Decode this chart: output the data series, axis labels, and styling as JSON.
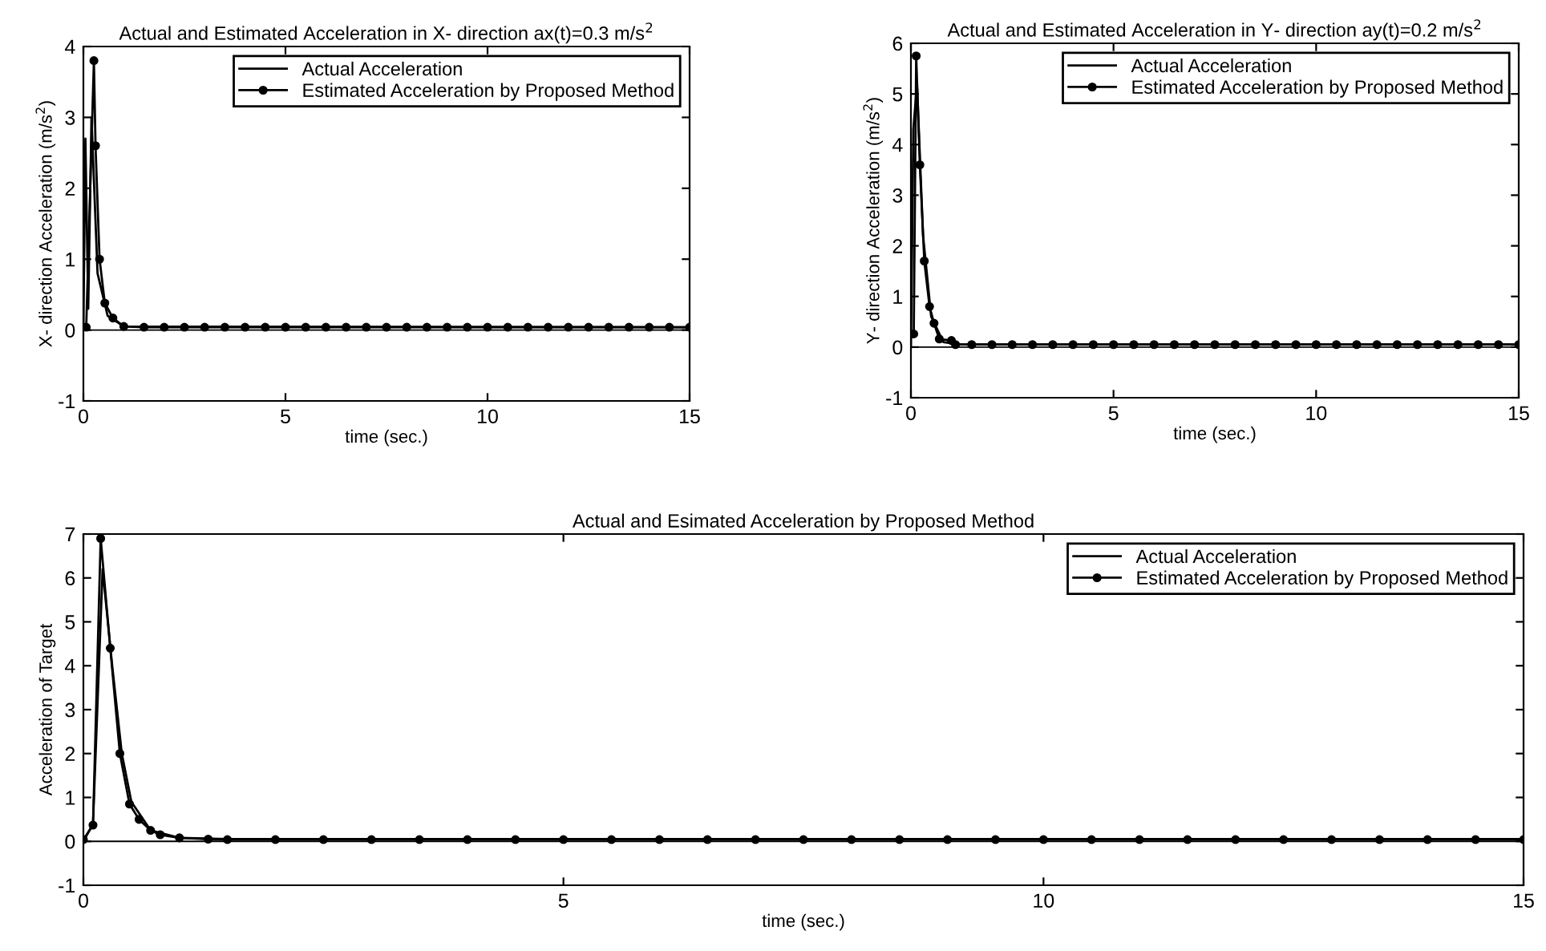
{
  "chart_data": [
    {
      "type": "line",
      "title": "Actual and Estimated Acceleration in X- direction ax(t)=0.3 m/s$^{2}$",
      "xlabel": "time (sec.)",
      "ylabel": "X- direction Acceleration (m/s$^{2}$)",
      "xlim": [
        0,
        15
      ],
      "ylim": [
        -1,
        4
      ],
      "xticks": [
        0,
        5,
        10,
        15
      ],
      "yticks": [
        -1,
        0,
        1,
        2,
        3,
        4
      ],
      "grid": false,
      "legend": "top right",
      "ref_lines": [
        {
          "axis": "y",
          "value": 0,
          "color": "#000000"
        }
      ],
      "series": [
        {
          "name": "Actual Acceleration",
          "color": "#000000",
          "marker": "none",
          "x": [
            0,
            0.05,
            0.12,
            0.2,
            0.35,
            0.6,
            1.0,
            15
          ],
          "values": [
            0,
            2.7,
            0.3,
            3.0,
            0.8,
            0.2,
            0.05,
            0.04
          ]
        },
        {
          "name": "Estimated Acceleration by Proposed Method",
          "color": "#000000",
          "marker": "circle",
          "x": [
            0.07,
            0.26,
            0.3,
            0.4,
            0.53,
            0.73,
            1.0,
            1.5,
            2,
            2.5,
            3,
            3.5,
            4,
            4.5,
            5,
            5.5,
            6,
            6.5,
            7,
            7.5,
            8,
            8.5,
            9,
            9.5,
            10,
            10.5,
            11,
            11.5,
            12,
            12.5,
            13,
            13.5,
            14,
            14.5,
            15
          ],
          "values": [
            0.04,
            3.8,
            2.6,
            1.0,
            0.38,
            0.17,
            0.05,
            0.04,
            0.04,
            0.04,
            0.04,
            0.04,
            0.04,
            0.04,
            0.04,
            0.04,
            0.04,
            0.04,
            0.04,
            0.04,
            0.04,
            0.04,
            0.04,
            0.04,
            0.04,
            0.04,
            0.04,
            0.04,
            0.04,
            0.04,
            0.04,
            0.04,
            0.04,
            0.04,
            0.04
          ]
        }
      ]
    },
    {
      "type": "line",
      "title": "Actual and Estimated Acceleration in Y- direction ay(t)=0.2 m/s$^{2}$",
      "xlabel": "time (sec.)",
      "ylabel": "Y- direction Acceleration (m/s$^{2}$)",
      "xlim": [
        0,
        15
      ],
      "ylim": [
        -1,
        6
      ],
      "xticks": [
        0,
        5,
        10,
        15
      ],
      "yticks": [
        -1,
        0,
        1,
        2,
        3,
        4,
        5,
        6
      ],
      "grid": false,
      "legend": "top right",
      "ref_lines": [
        {
          "axis": "y",
          "value": 0,
          "color": "#000000"
        }
      ],
      "series": [
        {
          "name": "Actual Acceleration",
          "color": "#000000",
          "marker": "none",
          "x": [
            0,
            0.06,
            0.15,
            0.3,
            0.5,
            0.8,
            1.2,
            15
          ],
          "values": [
            0,
            4.3,
            5.2,
            2.2,
            0.6,
            0.1,
            0.05,
            0.05
          ]
        },
        {
          "name": "Estimated Acceleration by Proposed Method",
          "color": "#000000",
          "marker": "circle",
          "x": [
            0.07,
            0.13,
            0.22,
            0.33,
            0.46,
            0.57,
            0.7,
            1.0,
            1.1,
            1.5,
            2,
            2.5,
            3,
            3.5,
            4,
            4.5,
            5,
            5.5,
            6,
            6.5,
            7,
            7.5,
            8,
            8.5,
            9,
            9.5,
            10,
            10.5,
            11,
            11.5,
            12,
            12.5,
            13,
            13.5,
            14,
            14.5,
            15
          ],
          "values": [
            0.26,
            5.75,
            3.6,
            1.7,
            0.8,
            0.47,
            0.16,
            0.13,
            0.05,
            0.05,
            0.05,
            0.05,
            0.05,
            0.05,
            0.05,
            0.05,
            0.05,
            0.05,
            0.05,
            0.05,
            0.05,
            0.05,
            0.05,
            0.05,
            0.05,
            0.05,
            0.05,
            0.05,
            0.05,
            0.05,
            0.05,
            0.05,
            0.05,
            0.05,
            0.05,
            0.05,
            0.05
          ]
        }
      ]
    },
    {
      "type": "line",
      "title": "Actual and Esimated Acceleration by Proposed Method",
      "xlabel": "time (sec.)",
      "ylabel": "Acceleration of Target",
      "xlim": [
        0,
        15
      ],
      "ylim": [
        -1,
        7
      ],
      "xticks": [
        0,
        5,
        10,
        15
      ],
      "yticks": [
        -1,
        0,
        1,
        2,
        3,
        4,
        5,
        6,
        7
      ],
      "grid": false,
      "legend": "top right",
      "ref_lines": [
        {
          "axis": "y",
          "value": 0,
          "color": "#000000"
        }
      ],
      "series": [
        {
          "name": "Actual Acceleration",
          "color": "#000000",
          "marker": "none",
          "x": [
            0,
            0.1,
            0.2,
            0.3,
            0.4,
            0.5,
            0.7,
            1.0,
            1.5,
            15
          ],
          "values": [
            0,
            0.4,
            6.2,
            4.0,
            2.0,
            0.9,
            0.25,
            0.08,
            0.05,
            0.05
          ]
        },
        {
          "name": "Estimated Acceleration by Proposed Method",
          "color": "#000000",
          "marker": "circle",
          "x": [
            0,
            0.1,
            0.18,
            0.28,
            0.38,
            0.48,
            0.58,
            0.7,
            0.8,
            1.0,
            1.3,
            1.5,
            2,
            2.5,
            3,
            3.5,
            4,
            4.5,
            5,
            5.5,
            6,
            6.5,
            7,
            7.5,
            8,
            8.5,
            9,
            9.5,
            10,
            10.5,
            11,
            11.5,
            12,
            12.5,
            13,
            13.5,
            14,
            14.5,
            15
          ],
          "values": [
            0.04,
            0.37,
            6.9,
            4.4,
            2.0,
            0.85,
            0.5,
            0.25,
            0.15,
            0.08,
            0.05,
            0.04,
            0.04,
            0.04,
            0.04,
            0.04,
            0.04,
            0.04,
            0.04,
            0.04,
            0.04,
            0.04,
            0.04,
            0.04,
            0.04,
            0.04,
            0.04,
            0.04,
            0.04,
            0.04,
            0.04,
            0.04,
            0.04,
            0.04,
            0.04,
            0.04,
            0.04,
            0.04,
            0.04
          ]
        }
      ]
    }
  ]
}
